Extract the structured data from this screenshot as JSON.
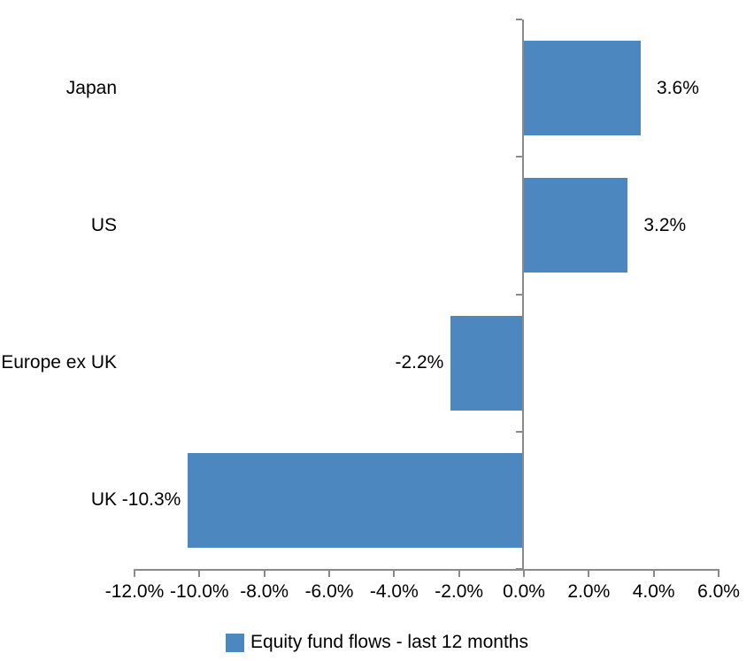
{
  "chart_data": {
    "type": "bar",
    "orientation": "horizontal",
    "title": "",
    "categories": [
      "Japan",
      "US",
      "Europe ex UK",
      "UK"
    ],
    "series": [
      {
        "name": "Equity fund flows - last 12 months",
        "values": [
          3.6,
          3.2,
          -2.2,
          -10.3
        ],
        "labels": [
          "3.6%",
          "3.2%",
          "-2.2%",
          "-10.3%"
        ],
        "color": "#4D87BF"
      }
    ],
    "xlim": [
      -12,
      6
    ],
    "x_tick_values": [
      -12,
      -10,
      -8,
      -6,
      -4,
      -2,
      0,
      2,
      4,
      6
    ],
    "x_tick_labels": [
      "-12.0%",
      "-10.0%",
      "-8.0%",
      "-6.0%",
      "-4.0%",
      "-2.0%",
      "0.0%",
      "2.0%",
      "4.0%",
      "6.0%"
    ],
    "grid": false,
    "legend_position": "bottom",
    "axis_color": "#8A8A8A",
    "text_color": "#000000",
    "background": "#FFFFFF"
  }
}
